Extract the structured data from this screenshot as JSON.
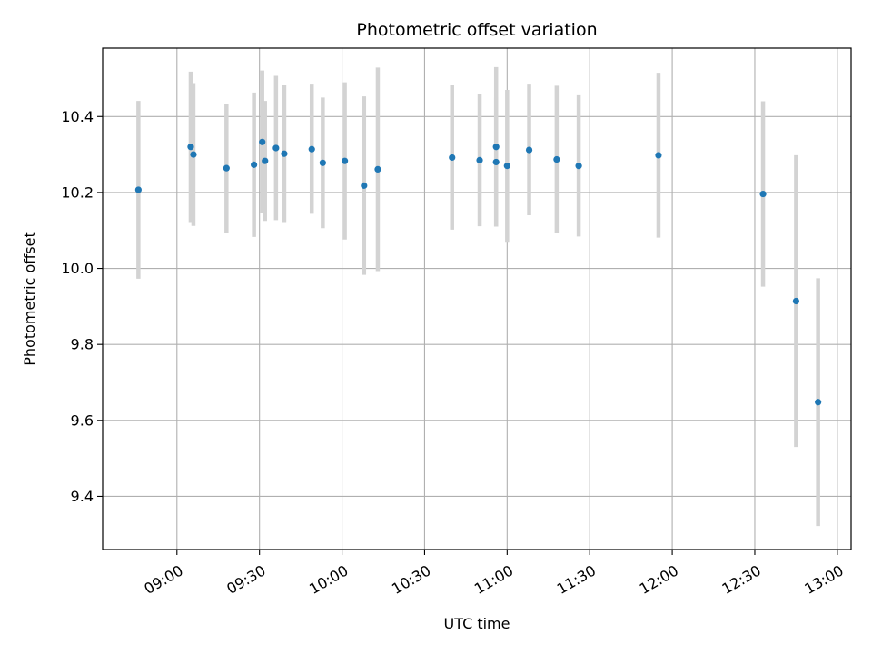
{
  "chart_data": {
    "type": "scatter",
    "title": "Photometric offset variation",
    "xlabel": "UTC time",
    "ylabel": "Photometric offset",
    "x_unit": "time of day (HH:MM)",
    "xlim": [
      "08:33",
      "13:05"
    ],
    "ylim": [
      9.26,
      10.58
    ],
    "x_ticks": [
      "09:00",
      "09:30",
      "10:00",
      "10:30",
      "11:00",
      "11:30",
      "12:00",
      "12:30",
      "13:00"
    ],
    "y_ticks": [
      9.4,
      9.6,
      9.8,
      10.0,
      10.2,
      10.4
    ],
    "y_tick_labels": [
      "9.4",
      "9.6",
      "9.8",
      "10.0",
      "10.2",
      "10.4"
    ],
    "grid": true,
    "series": [
      {
        "marker_color": "#1f77b4",
        "errorbar_color": "#d3d3d3",
        "points": [
          {
            "x": "08:46",
            "y": 10.207,
            "yerr": 0.234
          },
          {
            "x": "09:05",
            "y": 10.32,
            "yerr": 0.198
          },
          {
            "x": "09:06",
            "y": 10.3,
            "yerr": 0.188
          },
          {
            "x": "09:18",
            "y": 10.264,
            "yerr": 0.17
          },
          {
            "x": "09:28",
            "y": 10.273,
            "yerr": 0.19
          },
          {
            "x": "09:31",
            "y": 10.333,
            "yerr": 0.188
          },
          {
            "x": "09:32",
            "y": 10.283,
            "yerr": 0.158
          },
          {
            "x": "09:36",
            "y": 10.317,
            "yerr": 0.19
          },
          {
            "x": "09:39",
            "y": 10.302,
            "yerr": 0.18
          },
          {
            "x": "09:49",
            "y": 10.314,
            "yerr": 0.17
          },
          {
            "x": "09:53",
            "y": 10.278,
            "yerr": 0.172
          },
          {
            "x": "10:01",
            "y": 10.283,
            "yerr": 0.207
          },
          {
            "x": "10:08",
            "y": 10.218,
            "yerr": 0.235
          },
          {
            "x": "10:13",
            "y": 10.261,
            "yerr": 0.268
          },
          {
            "x": "10:40",
            "y": 10.292,
            "yerr": 0.19
          },
          {
            "x": "10:50",
            "y": 10.285,
            "yerr": 0.174
          },
          {
            "x": "10:56",
            "y": 10.28,
            "yerr": 0.17
          },
          {
            "x": "10:56",
            "y": 10.32,
            "yerr": 0.21
          },
          {
            "x": "11:00",
            "y": 10.27,
            "yerr": 0.2
          },
          {
            "x": "11:08",
            "y": 10.312,
            "yerr": 0.172
          },
          {
            "x": "11:18",
            "y": 10.287,
            "yerr": 0.194
          },
          {
            "x": "11:26",
            "y": 10.27,
            "yerr": 0.186
          },
          {
            "x": "11:55",
            "y": 10.298,
            "yerr": 0.217
          },
          {
            "x": "12:33",
            "y": 10.196,
            "yerr": 0.244
          },
          {
            "x": "12:45",
            "y": 9.914,
            "yerr": 0.384
          },
          {
            "x": "12:53",
            "y": 9.648,
            "yerr": 0.326
          }
        ]
      }
    ]
  }
}
